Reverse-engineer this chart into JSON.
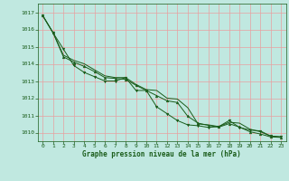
{
  "title": "Graphe pression niveau de la mer (hPa)",
  "background_color": "#c0e8e0",
  "plot_bg_color": "#c0e8e0",
  "grid_color": "#e8a0a0",
  "line_color": "#1a5c1a",
  "marker_color": "#1a5c1a",
  "xlim": [
    -0.5,
    23.5
  ],
  "ylim": [
    1009.5,
    1017.5
  ],
  "yticks": [
    1010,
    1011,
    1012,
    1013,
    1014,
    1015,
    1016,
    1017
  ],
  "xticks": [
    0,
    1,
    2,
    3,
    4,
    5,
    6,
    7,
    8,
    9,
    10,
    11,
    12,
    13,
    14,
    15,
    16,
    17,
    18,
    19,
    20,
    21,
    22,
    23
  ],
  "series": [
    [
      1016.8,
      1015.8,
      1014.85,
      1013.9,
      1013.5,
      1013.25,
      1013.0,
      1013.0,
      1013.2,
      1012.45,
      1012.45,
      1011.5,
      1011.1,
      1010.7,
      1010.45,
      1010.4,
      1010.3,
      1010.35,
      1010.7,
      1010.3,
      1010.15,
      1010.1,
      1009.8,
      1009.75
    ],
    [
      1016.8,
      1015.8,
      1014.5,
      1014.2,
      1014.0,
      1013.65,
      1013.3,
      1013.2,
      1013.2,
      1012.8,
      1012.5,
      1012.45,
      1012.0,
      1011.95,
      1011.45,
      1010.5,
      1010.45,
      1010.35,
      1010.6,
      1010.55,
      1010.2,
      1010.05,
      1009.8,
      1009.75
    ],
    [
      1016.8,
      1015.8,
      1014.4,
      1014.1,
      1013.85,
      1013.55,
      1013.2,
      1013.15,
      1013.1,
      1012.75,
      1012.45,
      1012.15,
      1011.85,
      1011.75,
      1010.95,
      1010.55,
      1010.42,
      1010.32,
      1010.52,
      1010.32,
      1010.05,
      1009.92,
      1009.75,
      1009.72
    ]
  ]
}
